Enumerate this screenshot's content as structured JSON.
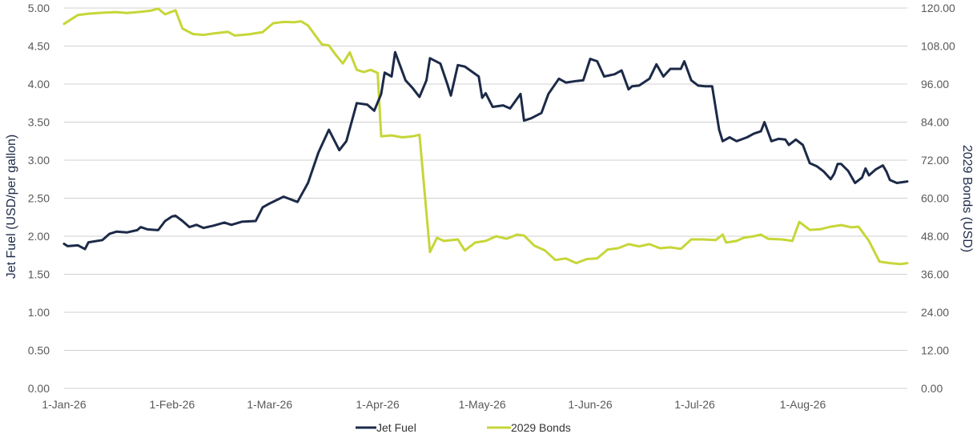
{
  "colors": {
    "jet": "#1c2a48",
    "bonds": "#c6d638",
    "grid": "#d0d0d0"
  },
  "chart_data": {
    "type": "line",
    "grid": "horizontal",
    "legend_position": "bottom",
    "y_left": {
      "label": "Jet Fuel (USD/per gallon)",
      "range": [
        0,
        5
      ],
      "ticks": [
        "0.00",
        "0.50",
        "1.00",
        "1.50",
        "2.00",
        "2.50",
        "3.00",
        "3.50",
        "4.00",
        "4.50",
        "5.00"
      ]
    },
    "y_right": {
      "label": "2029 Bonds (USD)",
      "range": [
        0,
        120
      ],
      "ticks": [
        "0.00",
        "12.00",
        "24.00",
        "36.00",
        "48.00",
        "60.00",
        "72.00",
        "84.00",
        "96.00",
        "108.00",
        "120.00"
      ]
    },
    "x_ticks": [
      "1-Jan-26",
      "1-Feb-26",
      "1-Mar-26",
      "1-Apr-26",
      "1-May-26",
      "1-Jun-26",
      "1-Jul-26",
      "1-Aug-26"
    ],
    "x_range": [
      "2026-01-01",
      "2026-08-31"
    ],
    "series": [
      {
        "name": "Jet Fuel",
        "axis": "left",
        "points": [
          [
            "2026-01-01",
            1.9
          ],
          [
            "2026-01-02",
            1.87
          ],
          [
            "2026-01-05",
            1.88
          ],
          [
            "2026-01-07",
            1.83
          ],
          [
            "2026-01-08",
            1.92
          ],
          [
            "2026-01-12",
            1.95
          ],
          [
            "2026-01-14",
            2.03
          ],
          [
            "2026-01-16",
            2.06
          ],
          [
            "2026-01-19",
            2.05
          ],
          [
            "2026-01-22",
            2.08
          ],
          [
            "2026-01-23",
            2.12
          ],
          [
            "2026-01-25",
            2.09
          ],
          [
            "2026-01-28",
            2.08
          ],
          [
            "2026-01-30",
            2.2
          ],
          [
            "2026-02-01",
            2.26
          ],
          [
            "2026-02-02",
            2.27
          ],
          [
            "2026-02-04",
            2.2
          ],
          [
            "2026-02-06",
            2.12
          ],
          [
            "2026-02-08",
            2.15
          ],
          [
            "2026-02-10",
            2.11
          ],
          [
            "2026-02-13",
            2.14
          ],
          [
            "2026-02-16",
            2.18
          ],
          [
            "2026-02-18",
            2.15
          ],
          [
            "2026-02-21",
            2.19
          ],
          [
            "2026-02-25",
            2.2
          ],
          [
            "2026-02-27",
            2.38
          ],
          [
            "2026-03-01",
            2.43
          ],
          [
            "2026-03-05",
            2.52
          ],
          [
            "2026-03-09",
            2.45
          ],
          [
            "2026-03-12",
            2.7
          ],
          [
            "2026-03-15",
            3.1
          ],
          [
            "2026-03-18",
            3.4
          ],
          [
            "2026-03-21",
            3.13
          ],
          [
            "2026-03-23",
            3.25
          ],
          [
            "2026-03-26",
            3.75
          ],
          [
            "2026-03-29",
            3.73
          ],
          [
            "2026-03-31",
            3.65
          ],
          [
            "2026-04-02",
            3.87
          ],
          [
            "2026-04-03",
            4.15
          ],
          [
            "2026-04-05",
            4.1
          ],
          [
            "2026-04-06",
            4.42
          ],
          [
            "2026-04-09",
            4.05
          ],
          [
            "2026-04-11",
            3.95
          ],
          [
            "2026-04-13",
            3.83
          ],
          [
            "2026-04-15",
            4.05
          ],
          [
            "2026-04-16",
            4.34
          ],
          [
            "2026-04-19",
            4.27
          ],
          [
            "2026-04-21",
            4.0
          ],
          [
            "2026-04-22",
            3.85
          ],
          [
            "2026-04-24",
            4.25
          ],
          [
            "2026-04-26",
            4.23
          ],
          [
            "2026-04-30",
            4.1
          ],
          [
            "2026-05-01",
            3.82
          ],
          [
            "2026-05-02",
            3.88
          ],
          [
            "2026-05-04",
            3.7
          ],
          [
            "2026-05-07",
            3.72
          ],
          [
            "2026-05-09",
            3.68
          ],
          [
            "2026-05-12",
            3.87
          ],
          [
            "2026-05-13",
            3.52
          ],
          [
            "2026-05-15",
            3.55
          ],
          [
            "2026-05-18",
            3.62
          ],
          [
            "2026-05-20",
            3.87
          ],
          [
            "2026-05-23",
            4.07
          ],
          [
            "2026-05-25",
            4.02
          ],
          [
            "2026-05-28",
            4.04
          ],
          [
            "2026-05-30",
            4.05
          ],
          [
            "2026-06-01",
            4.33
          ],
          [
            "2026-06-03",
            4.3
          ],
          [
            "2026-06-05",
            4.1
          ],
          [
            "2026-06-08",
            4.13
          ],
          [
            "2026-06-10",
            4.18
          ],
          [
            "2026-06-12",
            3.93
          ],
          [
            "2026-06-13",
            3.97
          ],
          [
            "2026-06-15",
            3.98
          ],
          [
            "2026-06-18",
            4.07
          ],
          [
            "2026-06-20",
            4.26
          ],
          [
            "2026-06-22",
            4.1
          ],
          [
            "2026-06-24",
            4.2
          ],
          [
            "2026-06-27",
            4.2
          ],
          [
            "2026-06-28",
            4.3
          ],
          [
            "2026-06-30",
            4.05
          ],
          [
            "2026-07-02",
            3.98
          ],
          [
            "2026-07-04",
            3.97
          ],
          [
            "2026-07-06",
            3.97
          ],
          [
            "2026-07-08",
            3.4
          ],
          [
            "2026-07-09",
            3.25
          ],
          [
            "2026-07-11",
            3.3
          ],
          [
            "2026-07-13",
            3.25
          ],
          [
            "2026-07-16",
            3.3
          ],
          [
            "2026-07-18",
            3.35
          ],
          [
            "2026-07-20",
            3.38
          ],
          [
            "2026-07-21",
            3.5
          ],
          [
            "2026-07-23",
            3.25
          ],
          [
            "2026-07-25",
            3.28
          ],
          [
            "2026-07-27",
            3.27
          ],
          [
            "2026-07-28",
            3.2
          ],
          [
            "2026-07-30",
            3.27
          ],
          [
            "2026-08-01",
            3.2
          ],
          [
            "2026-08-03",
            2.96
          ],
          [
            "2026-08-05",
            2.92
          ],
          [
            "2026-08-07",
            2.85
          ],
          [
            "2026-08-09",
            2.75
          ],
          [
            "2026-08-10",
            2.82
          ],
          [
            "2026-08-11",
            2.95
          ],
          [
            "2026-08-12",
            2.95
          ],
          [
            "2026-08-14",
            2.86
          ],
          [
            "2026-08-16",
            2.7
          ],
          [
            "2026-08-18",
            2.77
          ],
          [
            "2026-08-19",
            2.89
          ],
          [
            "2026-08-20",
            2.8
          ],
          [
            "2026-08-22",
            2.88
          ],
          [
            "2026-08-24",
            2.93
          ],
          [
            "2026-08-25",
            2.85
          ],
          [
            "2026-08-26",
            2.74
          ],
          [
            "2026-08-28",
            2.7
          ],
          [
            "2026-08-31",
            2.72
          ]
        ]
      },
      {
        "name": "2029 Bonds",
        "axis": "right",
        "points": [
          [
            "2026-01-01",
            115.0
          ],
          [
            "2026-01-05",
            117.8
          ],
          [
            "2026-01-08",
            118.2
          ],
          [
            "2026-01-12",
            118.5
          ],
          [
            "2026-01-16",
            118.7
          ],
          [
            "2026-01-19",
            118.4
          ],
          [
            "2026-01-23",
            118.8
          ],
          [
            "2026-01-26",
            119.2
          ],
          [
            "2026-01-28",
            119.8
          ],
          [
            "2026-01-30",
            118.0
          ],
          [
            "2026-02-02",
            119.3
          ],
          [
            "2026-02-04",
            113.5
          ],
          [
            "2026-02-07",
            111.8
          ],
          [
            "2026-02-10",
            111.5
          ],
          [
            "2026-02-13",
            112.0
          ],
          [
            "2026-02-17",
            112.5
          ],
          [
            "2026-02-19",
            111.3
          ],
          [
            "2026-02-23",
            111.7
          ],
          [
            "2026-02-27",
            112.4
          ],
          [
            "2026-03-02",
            115.2
          ],
          [
            "2026-03-05",
            115.6
          ],
          [
            "2026-03-08",
            115.5
          ],
          [
            "2026-03-10",
            115.8
          ],
          [
            "2026-03-12",
            114.5
          ],
          [
            "2026-03-14",
            111.5
          ],
          [
            "2026-03-16",
            108.5
          ],
          [
            "2026-03-18",
            108.2
          ],
          [
            "2026-03-20",
            105.2
          ],
          [
            "2026-03-22",
            102.5
          ],
          [
            "2026-03-24",
            106.0
          ],
          [
            "2026-03-26",
            100.5
          ],
          [
            "2026-03-28",
            99.8
          ],
          [
            "2026-03-30",
            100.5
          ],
          [
            "2026-04-01",
            99.5
          ],
          [
            "2026-04-02",
            79.5
          ],
          [
            "2026-04-05",
            79.8
          ],
          [
            "2026-04-08",
            79.2
          ],
          [
            "2026-04-11",
            79.5
          ],
          [
            "2026-04-13",
            80.0
          ],
          [
            "2026-04-16",
            43.0
          ],
          [
            "2026-04-18",
            47.5
          ],
          [
            "2026-04-20",
            46.5
          ],
          [
            "2026-04-24",
            47.0
          ],
          [
            "2026-04-26",
            43.5
          ],
          [
            "2026-04-29",
            46.0
          ],
          [
            "2026-05-02",
            46.5
          ],
          [
            "2026-05-05",
            48.0
          ],
          [
            "2026-05-08",
            47.2
          ],
          [
            "2026-05-11",
            48.5
          ],
          [
            "2026-05-13",
            48.2
          ],
          [
            "2026-05-16",
            45.0
          ],
          [
            "2026-05-19",
            43.5
          ],
          [
            "2026-05-22",
            40.5
          ],
          [
            "2026-05-25",
            41.0
          ],
          [
            "2026-05-28",
            39.5
          ],
          [
            "2026-05-31",
            40.8
          ],
          [
            "2026-06-03",
            41.0
          ],
          [
            "2026-06-06",
            43.8
          ],
          [
            "2026-06-09",
            44.2
          ],
          [
            "2026-06-12",
            45.5
          ],
          [
            "2026-06-15",
            44.8
          ],
          [
            "2026-06-18",
            45.5
          ],
          [
            "2026-06-21",
            44.2
          ],
          [
            "2026-06-24",
            44.5
          ],
          [
            "2026-06-27",
            44.0
          ],
          [
            "2026-06-30",
            47.0
          ],
          [
            "2026-07-03",
            47.0
          ],
          [
            "2026-07-07",
            46.8
          ],
          [
            "2026-07-09",
            48.5
          ],
          [
            "2026-07-10",
            46.0
          ],
          [
            "2026-07-13",
            46.5
          ],
          [
            "2026-07-15",
            47.5
          ],
          [
            "2026-07-18",
            48.0
          ],
          [
            "2026-07-20",
            48.5
          ],
          [
            "2026-07-22",
            47.2
          ],
          [
            "2026-07-26",
            47.0
          ],
          [
            "2026-07-29",
            46.5
          ],
          [
            "2026-07-31",
            52.5
          ],
          [
            "2026-08-03",
            50.0
          ],
          [
            "2026-08-06",
            50.2
          ],
          [
            "2026-08-09",
            51.0
          ],
          [
            "2026-08-12",
            51.5
          ],
          [
            "2026-08-15",
            50.8
          ],
          [
            "2026-08-17",
            51.0
          ],
          [
            "2026-08-20",
            46.5
          ],
          [
            "2026-08-23",
            40.0
          ],
          [
            "2026-08-26",
            39.5
          ],
          [
            "2026-08-29",
            39.2
          ],
          [
            "2026-08-31",
            39.5
          ]
        ]
      }
    ]
  },
  "legend": [
    {
      "label": "Jet Fuel",
      "color": "#1c2a48"
    },
    {
      "label": "2029 Bonds",
      "color": "#c6d638"
    }
  ]
}
